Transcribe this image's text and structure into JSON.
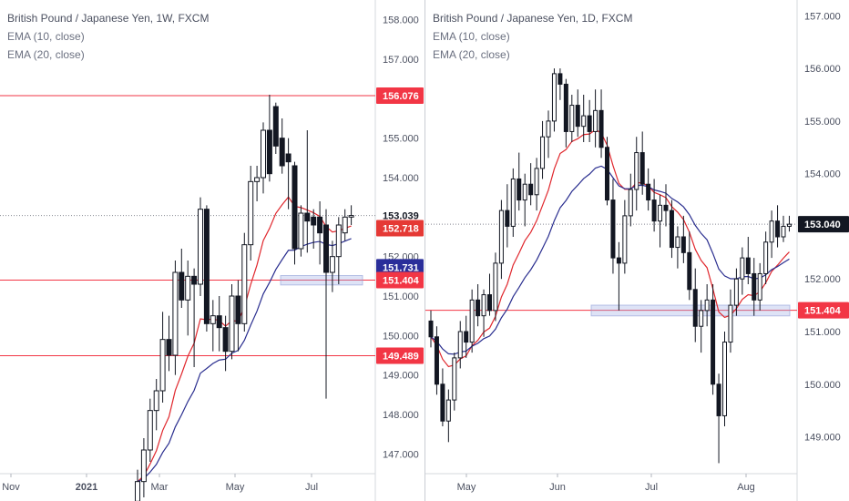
{
  "charts": [
    {
      "title": "British Pound / Japanese Yen, 1W, FXCM",
      "legend": [
        "EMA (10, close)",
        "EMA (20, close)"
      ],
      "ylim": [
        146.5,
        158.5
      ],
      "yticks": [
        "158.000",
        "157.000",
        "156.000",
        "155.000",
        "154.000",
        "153.000",
        "152.000",
        "151.000",
        "150.000",
        "149.000",
        "148.000",
        "147.000"
      ],
      "xticks": [
        "Nov",
        "2021",
        "Mar",
        "May",
        "Jul"
      ],
      "price_labels": [
        {
          "text": "156.076",
          "value": 156.076,
          "color": "#f23645"
        },
        {
          "text": "153.039",
          "value": 153.039,
          "color": "#ffffff",
          "text_color": "#131722",
          "border": "#ffffff"
        },
        {
          "text": "152.718",
          "value": 152.718,
          "color": "#e53935"
        },
        {
          "text": "151.731",
          "value": 151.731,
          "color": "#2a2e9a"
        },
        {
          "text": "151.404",
          "value": 151.404,
          "color": "#f23645"
        },
        {
          "text": "149.489",
          "value": 149.489,
          "color": "#f23645"
        }
      ]
    },
    {
      "title": "British Pound / Japanese Yen, 1D, FXCM",
      "legend": [
        "EMA (10, close)",
        "EMA (20, close)"
      ],
      "ylim": [
        148.3,
        157.3
      ],
      "yticks": [
        "157.000",
        "156.000",
        "155.000",
        "154.000",
        "153.000",
        "152.000",
        "151.000",
        "150.000",
        "149.000"
      ],
      "xticks": [
        "May",
        "Jun",
        "Jul",
        "Aug"
      ],
      "price_labels": [
        {
          "text": "153.040",
          "value": 153.04,
          "color": "#131722",
          "text_color": "#ffffff"
        },
        {
          "text": "151.404",
          "value": 151.404,
          "color": "#f23645"
        }
      ]
    }
  ],
  "chart_data": [
    {
      "type": "candlestick",
      "title": "British Pound / Japanese Yen, 1W, FXCM",
      "ylim": [
        146.5,
        158.5
      ],
      "x_labels": [
        "Nov",
        "2021",
        "Mar",
        "May",
        "Jul"
      ],
      "horizontal_levels": [
        156.076,
        151.404,
        149.489
      ],
      "last_price": 153.039,
      "ema10_last": 152.718,
      "ema20_last": 151.731,
      "support_zone": [
        151.35,
        151.45
      ],
      "candles": [
        {
          "o": 145.8,
          "h": 146.6,
          "l": 145.0,
          "c": 146.3
        },
        {
          "o": 146.3,
          "h": 147.4,
          "l": 145.9,
          "c": 147.1
        },
        {
          "o": 147.1,
          "h": 148.4,
          "l": 146.8,
          "c": 148.1
        },
        {
          "o": 148.1,
          "h": 148.9,
          "l": 147.6,
          "c": 148.6
        },
        {
          "o": 148.6,
          "h": 150.6,
          "l": 148.3,
          "c": 149.9
        },
        {
          "o": 149.9,
          "h": 150.5,
          "l": 149.1,
          "c": 149.5
        },
        {
          "o": 149.5,
          "h": 151.9,
          "l": 149.0,
          "c": 151.6
        },
        {
          "o": 151.6,
          "h": 152.2,
          "l": 150.7,
          "c": 150.9
        },
        {
          "o": 150.9,
          "h": 151.9,
          "l": 150.0,
          "c": 151.5
        },
        {
          "o": 151.5,
          "h": 151.7,
          "l": 149.2,
          "c": 151.3
        },
        {
          "o": 151.3,
          "h": 153.5,
          "l": 151.0,
          "c": 153.2
        },
        {
          "o": 153.2,
          "h": 153.3,
          "l": 150.1,
          "c": 150.3
        },
        {
          "o": 150.3,
          "h": 150.9,
          "l": 149.6,
          "c": 150.5
        },
        {
          "o": 150.5,
          "h": 151.0,
          "l": 149.6,
          "c": 150.2
        },
        {
          "o": 150.2,
          "h": 150.5,
          "l": 149.1,
          "c": 149.6
        },
        {
          "o": 149.6,
          "h": 151.3,
          "l": 149.4,
          "c": 151.0
        },
        {
          "o": 151.0,
          "h": 151.4,
          "l": 149.6,
          "c": 150.3
        },
        {
          "o": 150.3,
          "h": 152.6,
          "l": 150.1,
          "c": 152.3
        },
        {
          "o": 152.3,
          "h": 154.3,
          "l": 151.9,
          "c": 153.9
        },
        {
          "o": 153.9,
          "h": 154.3,
          "l": 153.4,
          "c": 154.0
        },
        {
          "o": 154.0,
          "h": 155.4,
          "l": 153.6,
          "c": 155.2
        },
        {
          "o": 155.2,
          "h": 156.1,
          "l": 153.9,
          "c": 154.1
        },
        {
          "o": 155.8,
          "h": 155.9,
          "l": 154.6,
          "c": 154.8
        },
        {
          "o": 155.0,
          "h": 155.5,
          "l": 154.1,
          "c": 154.3
        },
        {
          "o": 154.6,
          "h": 155.0,
          "l": 153.2,
          "c": 154.4
        },
        {
          "o": 154.3,
          "h": 154.4,
          "l": 151.8,
          "c": 152.2
        },
        {
          "o": 152.2,
          "h": 153.3,
          "l": 152.0,
          "c": 153.1
        },
        {
          "o": 153.1,
          "h": 155.2,
          "l": 152.1,
          "c": 152.9
        },
        {
          "o": 153.0,
          "h": 153.2,
          "l": 152.2,
          "c": 152.8
        },
        {
          "o": 153.0,
          "h": 153.4,
          "l": 151.8,
          "c": 152.6
        },
        {
          "o": 152.8,
          "h": 153.2,
          "l": 148.4,
          "c": 151.6
        },
        {
          "o": 151.6,
          "h": 152.4,
          "l": 151.1,
          "c": 152.0
        },
        {
          "o": 152.0,
          "h": 153.0,
          "l": 151.3,
          "c": 152.8
        },
        {
          "o": 152.6,
          "h": 153.2,
          "l": 152.4,
          "c": 153.0
        },
        {
          "o": 153.0,
          "h": 153.3,
          "l": 152.8,
          "c": 153.04
        }
      ]
    },
    {
      "type": "candlestick",
      "title": "British Pound / Japanese Yen, 1D, FXCM",
      "ylim": [
        148.3,
        157.3
      ],
      "x_labels": [
        "May",
        "Jun",
        "Jul",
        "Aug"
      ],
      "horizontal_levels": [
        151.404
      ],
      "last_price": 153.04,
      "support_zone": [
        151.35,
        151.45
      ],
      "candles": [
        {
          "o": 151.2,
          "h": 151.4,
          "l": 150.7,
          "c": 150.9
        },
        {
          "o": 150.9,
          "h": 151.1,
          "l": 149.8,
          "c": 150.0
        },
        {
          "o": 150.0,
          "h": 150.3,
          "l": 149.2,
          "c": 149.3
        },
        {
          "o": 149.3,
          "h": 149.9,
          "l": 148.9,
          "c": 149.7
        },
        {
          "o": 149.7,
          "h": 150.6,
          "l": 149.5,
          "c": 150.5
        },
        {
          "o": 150.5,
          "h": 151.2,
          "l": 150.3,
          "c": 151.0
        },
        {
          "o": 151.0,
          "h": 151.3,
          "l": 150.5,
          "c": 150.8
        },
        {
          "o": 150.8,
          "h": 151.8,
          "l": 150.6,
          "c": 151.6
        },
        {
          "o": 151.6,
          "h": 151.9,
          "l": 151.1,
          "c": 151.3
        },
        {
          "o": 151.3,
          "h": 151.8,
          "l": 150.9,
          "c": 151.7
        },
        {
          "o": 151.7,
          "h": 152.1,
          "l": 151.3,
          "c": 151.4
        },
        {
          "o": 151.4,
          "h": 152.5,
          "l": 151.2,
          "c": 152.3
        },
        {
          "o": 152.3,
          "h": 153.5,
          "l": 152.0,
          "c": 153.3
        },
        {
          "o": 153.3,
          "h": 153.8,
          "l": 152.6,
          "c": 153.0
        },
        {
          "o": 153.0,
          "h": 154.1,
          "l": 152.8,
          "c": 153.9
        },
        {
          "o": 153.9,
          "h": 154.4,
          "l": 153.3,
          "c": 153.5
        },
        {
          "o": 153.5,
          "h": 154.0,
          "l": 153.0,
          "c": 153.8
        },
        {
          "o": 153.8,
          "h": 154.2,
          "l": 153.4,
          "c": 153.6
        },
        {
          "o": 153.6,
          "h": 154.3,
          "l": 153.3,
          "c": 154.1
        },
        {
          "o": 154.1,
          "h": 155.0,
          "l": 153.9,
          "c": 154.7
        },
        {
          "o": 154.7,
          "h": 155.2,
          "l": 154.3,
          "c": 155.0
        },
        {
          "o": 155.0,
          "h": 156.0,
          "l": 154.8,
          "c": 155.9
        },
        {
          "o": 155.9,
          "h": 156.0,
          "l": 155.4,
          "c": 155.7
        },
        {
          "o": 155.7,
          "h": 155.8,
          "l": 154.5,
          "c": 154.8
        },
        {
          "o": 154.8,
          "h": 155.5,
          "l": 154.6,
          "c": 155.3
        },
        {
          "o": 155.3,
          "h": 155.6,
          "l": 154.7,
          "c": 154.9
        },
        {
          "o": 154.9,
          "h": 155.5,
          "l": 154.6,
          "c": 155.1
        },
        {
          "o": 155.1,
          "h": 155.4,
          "l": 154.6,
          "c": 154.8
        },
        {
          "o": 154.8,
          "h": 155.6,
          "l": 154.5,
          "c": 155.2
        },
        {
          "o": 155.2,
          "h": 155.6,
          "l": 154.3,
          "c": 154.5
        },
        {
          "o": 154.5,
          "h": 154.7,
          "l": 153.4,
          "c": 153.5
        },
        {
          "o": 153.5,
          "h": 153.9,
          "l": 152.1,
          "c": 152.4
        },
        {
          "o": 152.4,
          "h": 152.7,
          "l": 151.4,
          "c": 152.3
        },
        {
          "o": 152.3,
          "h": 153.5,
          "l": 152.1,
          "c": 153.2
        },
        {
          "o": 153.2,
          "h": 154.0,
          "l": 153.0,
          "c": 153.7
        },
        {
          "o": 153.7,
          "h": 154.7,
          "l": 153.3,
          "c": 154.4
        },
        {
          "o": 154.4,
          "h": 154.8,
          "l": 153.6,
          "c": 153.8
        },
        {
          "o": 153.8,
          "h": 154.1,
          "l": 153.3,
          "c": 153.5
        },
        {
          "o": 153.5,
          "h": 153.9,
          "l": 152.9,
          "c": 153.1
        },
        {
          "o": 153.1,
          "h": 153.6,
          "l": 152.6,
          "c": 153.4
        },
        {
          "o": 153.4,
          "h": 153.8,
          "l": 153.0,
          "c": 153.3
        },
        {
          "o": 153.3,
          "h": 153.5,
          "l": 152.4,
          "c": 152.6
        },
        {
          "o": 152.6,
          "h": 153.0,
          "l": 152.2,
          "c": 152.8
        },
        {
          "o": 152.8,
          "h": 153.2,
          "l": 152.3,
          "c": 152.5
        },
        {
          "o": 152.5,
          "h": 152.9,
          "l": 151.6,
          "c": 151.8
        },
        {
          "o": 151.8,
          "h": 152.2,
          "l": 150.8,
          "c": 151.1
        },
        {
          "o": 151.1,
          "h": 151.6,
          "l": 150.6,
          "c": 151.4
        },
        {
          "o": 151.4,
          "h": 151.9,
          "l": 151.1,
          "c": 151.6
        },
        {
          "o": 151.6,
          "h": 151.9,
          "l": 149.8,
          "c": 150.0
        },
        {
          "o": 150.0,
          "h": 150.2,
          "l": 148.5,
          "c": 149.4
        },
        {
          "o": 149.4,
          "h": 151.0,
          "l": 149.2,
          "c": 150.8
        },
        {
          "o": 150.8,
          "h": 151.8,
          "l": 150.6,
          "c": 151.5
        },
        {
          "o": 151.5,
          "h": 152.2,
          "l": 151.3,
          "c": 152.0
        },
        {
          "o": 152.0,
          "h": 152.6,
          "l": 151.7,
          "c": 152.4
        },
        {
          "o": 152.4,
          "h": 152.8,
          "l": 151.9,
          "c": 152.1
        },
        {
          "o": 152.1,
          "h": 152.4,
          "l": 151.3,
          "c": 151.6
        },
        {
          "o": 151.6,
          "h": 152.3,
          "l": 151.4,
          "c": 152.1
        },
        {
          "o": 152.1,
          "h": 152.9,
          "l": 151.9,
          "c": 152.7
        },
        {
          "o": 152.7,
          "h": 153.3,
          "l": 152.4,
          "c": 153.1
        },
        {
          "o": 153.1,
          "h": 153.4,
          "l": 152.6,
          "c": 152.8
        },
        {
          "o": 152.8,
          "h": 153.2,
          "l": 152.7,
          "c": 153.0
        },
        {
          "o": 153.0,
          "h": 153.2,
          "l": 152.9,
          "c": 153.04
        }
      ]
    }
  ]
}
